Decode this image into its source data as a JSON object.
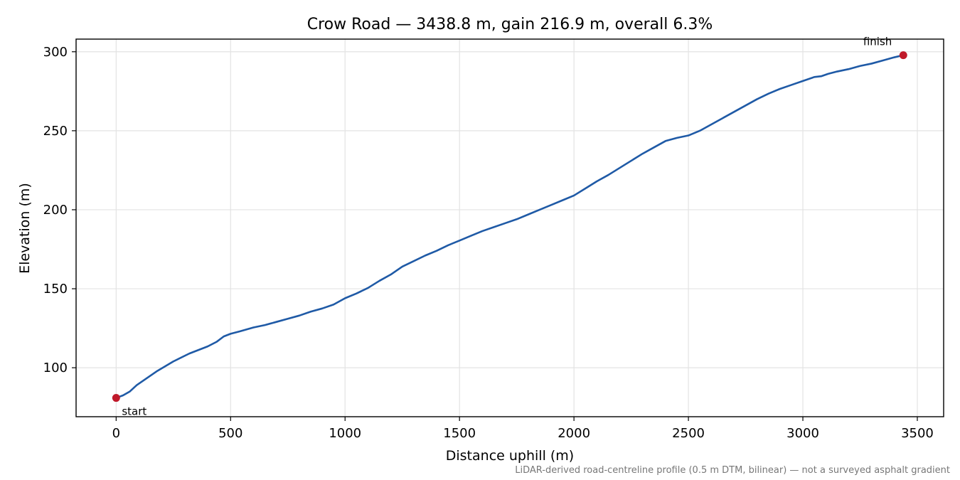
{
  "chart_data": {
    "type": "line",
    "title": "Crow Road — 3438.8 m, gain 216.9 m, overall 6.3%",
    "xlabel": "Distance uphill (m)",
    "ylabel": "Elevation (m)",
    "xlim": [
      -175,
      3615
    ],
    "ylim": [
      69,
      308
    ],
    "xticks": [
      0,
      500,
      1000,
      1500,
      2000,
      2500,
      3000,
      3500
    ],
    "yticks": [
      100,
      150,
      200,
      250,
      300
    ],
    "grid": true,
    "series": [
      {
        "color": "#1f5aa6",
        "x": [
          0,
          30,
          60,
          90,
          130,
          180,
          250,
          320,
          400,
          440,
          470,
          500,
          540,
          600,
          650,
          700,
          750,
          800,
          850,
          900,
          950,
          1000,
          1050,
          1100,
          1150,
          1200,
          1250,
          1300,
          1350,
          1400,
          1450,
          1500,
          1550,
          1600,
          1650,
          1700,
          1750,
          1800,
          1850,
          1900,
          1950,
          2000,
          2050,
          2100,
          2150,
          2200,
          2250,
          2300,
          2350,
          2400,
          2450,
          2500,
          2550,
          2600,
          2650,
          2700,
          2750,
          2800,
          2850,
          2900,
          2950,
          3000,
          3050,
          3080,
          3110,
          3150,
          3200,
          3250,
          3300,
          3350,
          3400,
          3438.8
        ],
        "values": [
          80.9,
          82.5,
          85.0,
          89.0,
          93.0,
          98.0,
          104.0,
          109.0,
          113.5,
          116.5,
          119.8,
          121.5,
          123.0,
          125.5,
          127.0,
          129.0,
          131.0,
          133.0,
          135.5,
          137.5,
          140.0,
          144.0,
          147.0,
          150.5,
          155.0,
          159.0,
          164.0,
          167.5,
          171.0,
          174.0,
          177.5,
          180.5,
          183.5,
          186.5,
          189.0,
          191.5,
          194.0,
          197.0,
          200.0,
          203.0,
          206.0,
          209.0,
          213.5,
          218.0,
          222.0,
          226.5,
          231.0,
          235.5,
          239.5,
          243.5,
          245.5,
          247.0,
          250.0,
          254.0,
          258.0,
          262.0,
          266.0,
          270.0,
          273.5,
          276.5,
          279.0,
          281.5,
          284.0,
          284.5,
          286.0,
          287.5,
          289.0,
          291.0,
          292.5,
          294.5,
          296.5,
          297.8
        ]
      }
    ],
    "markers": [
      {
        "label": "start",
        "x": 0,
        "y": 80.9,
        "color": "#c0192a"
      },
      {
        "label": "finish",
        "x": 3438.8,
        "y": 297.8,
        "color": "#c0192a"
      }
    ],
    "footnote": "LiDAR-derived road-centreline profile (0.5 m DTM, bilinear) — not a surveyed asphalt gradient"
  }
}
